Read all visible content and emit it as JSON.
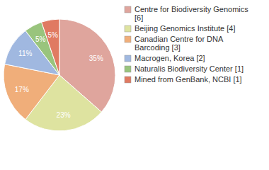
{
  "chart_data": {
    "type": "pie",
    "categories": [
      "Centre for Biodiversity Genomics [6]",
      "Beijing Genomics Institute [4]",
      "Canadian Centre for DNA Barcoding [3]",
      "Macrogen, Korea [2]",
      "Naturalis Biodiversity Center [1]",
      "Mined from GenBank, NCBI [1]"
    ],
    "values": [
      35,
      23,
      17,
      11,
      5,
      5
    ],
    "value_labels": [
      "35%",
      "23%",
      "17%",
      "11%",
      "5%",
      "5%"
    ],
    "colors": [
      "#dfa59d",
      "#dee3a0",
      "#f0ae7a",
      "#a0b8e0",
      "#99c47d",
      "#e07a62"
    ],
    "data_labels": true,
    "legend": "top-right"
  }
}
